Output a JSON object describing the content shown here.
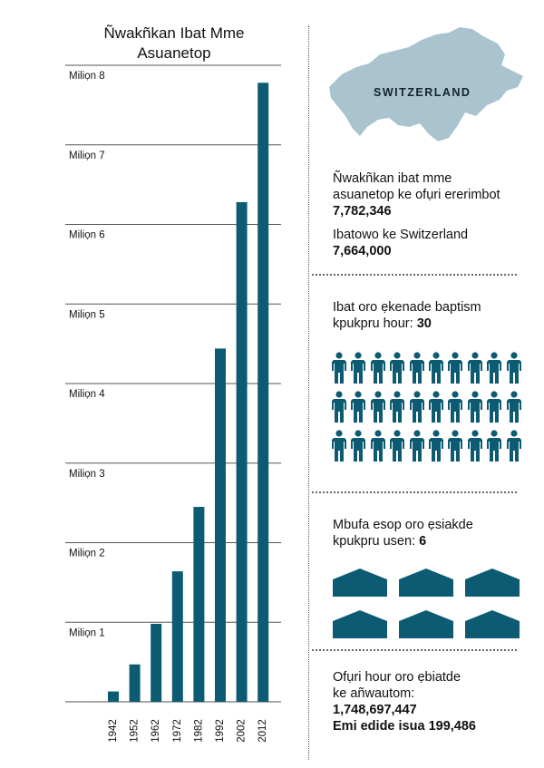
{
  "chart_data": {
    "type": "bar",
    "title": "Ñwakñkan Ibat Mme Asuanetop",
    "categories": [
      "1942",
      "1952",
      "1962",
      "1972",
      "1982",
      "1992",
      "2002",
      "2012"
    ],
    "values": [
      0.13,
      0.47,
      0.98,
      1.64,
      2.45,
      4.44,
      6.28,
      7.78
    ],
    "ylim": [
      0,
      8
    ],
    "yticks": [
      {
        "value": 1,
        "label": "Miliọn 1"
      },
      {
        "value": 2,
        "label": "Miliọn 2"
      },
      {
        "value": 3,
        "label": "Miliọn 3"
      },
      {
        "value": 4,
        "label": "Miliọn 4"
      },
      {
        "value": 5,
        "label": "Miliọn 5"
      },
      {
        "value": 6,
        "label": "Miliọn 6"
      },
      {
        "value": 7,
        "label": "Miliọn 7"
      },
      {
        "value": 8,
        "label": "Miliọn 8"
      }
    ],
    "grid": true,
    "bar_color": "#0d5b72",
    "grid_color": "#555555"
  },
  "map": {
    "label": "SWITZERLAND",
    "color": "#a9c3cf"
  },
  "stats": {
    "members_label_line1": "Ñwakñkan ibat mme",
    "members_label_line2": "asuanetop ke ofụri ererimbot",
    "members_value": "7,782,346",
    "population_label": "Ibatowo ke Switzerland",
    "population_value": "7,664,000",
    "baptized_line1": "Ibat oro ẹkenade baptism",
    "baptized_line2_prefix": "kpukpru hour: ",
    "baptized_value": "30",
    "people_icon_count": 30,
    "people_icon_color": "#0d5b72",
    "buildings_line1": "Mbufa esop oro ẹsiakde",
    "buildings_line2_prefix": "kpukpru usen: ",
    "buildings_value": "6",
    "building_icon_count": 6,
    "building_icon_color": "#0d5b72",
    "hours_line1": "Ofụri hour oro ẹbiatde",
    "hours_line2": "ke añwautom:",
    "hours_value": "1,748,697,447",
    "hours_avg": "Emi edide isua 199,486"
  }
}
